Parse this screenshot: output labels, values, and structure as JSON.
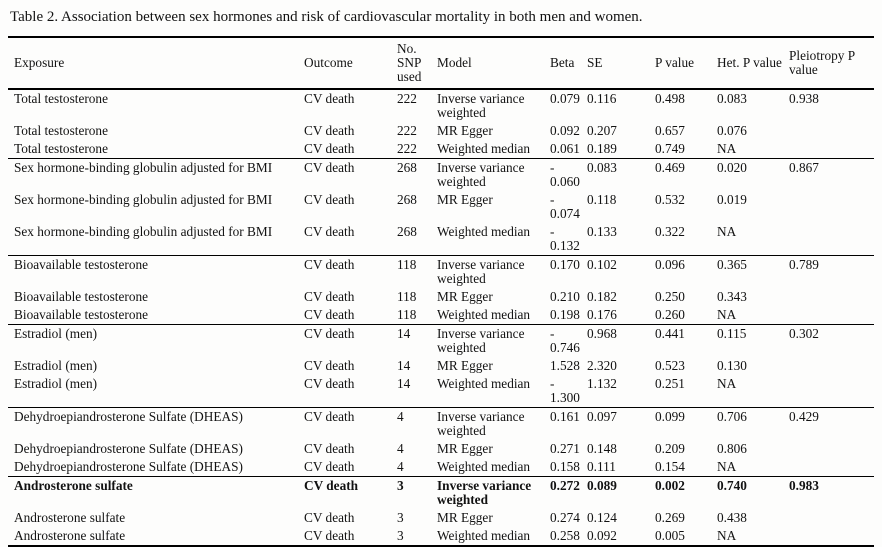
{
  "caption": "Table 2. Association between sex hormones and risk of cardiovascular mortality in both men and women.",
  "table": {
    "columns": [
      "Exposure",
      "Outcome",
      "No. SNP used",
      "Model",
      "Beta",
      "SE",
      "P value",
      "Het. P value",
      "Pleiotropy P value"
    ],
    "groups": [
      {
        "rows": [
          {
            "exposure": "Total testosterone",
            "outcome": "CV death",
            "snp": "222",
            "model": "Inverse variance weighted",
            "beta": "0.079",
            "se": "0.116",
            "p": "0.498",
            "het": "0.083",
            "pleio": "0.938",
            "bold": false
          },
          {
            "exposure": "Total testosterone",
            "outcome": "CV death",
            "snp": "222",
            "model": "MR Egger",
            "beta": "0.092",
            "se": "0.207",
            "p": "0.657",
            "het": "0.076",
            "pleio": "",
            "bold": false
          },
          {
            "exposure": "Total testosterone",
            "outcome": "CV death",
            "snp": "222",
            "model": "Weighted median",
            "beta": "0.061",
            "se": "0.189",
            "p": "0.749",
            "het": "NA",
            "pleio": "",
            "bold": false
          }
        ]
      },
      {
        "rows": [
          {
            "exposure": "Sex hormone-binding globulin adjusted for BMI",
            "outcome": "CV death",
            "snp": "268",
            "model": "Inverse variance weighted",
            "beta": "-\n0.060",
            "se": "0.083",
            "p": "0.469",
            "het": "0.020",
            "pleio": "0.867",
            "bold": false
          },
          {
            "exposure": "Sex hormone-binding globulin adjusted for BMI",
            "outcome": "CV death",
            "snp": "268",
            "model": "MR Egger",
            "beta": "-\n0.074",
            "se": "0.118",
            "p": "0.532",
            "het": "0.019",
            "pleio": "",
            "bold": false
          },
          {
            "exposure": "Sex hormone-binding globulin adjusted for BMI",
            "outcome": "CV death",
            "snp": "268",
            "model": "Weighted median",
            "beta": "-\n0.132",
            "se": "0.133",
            "p": "0.322",
            "het": "NA",
            "pleio": "",
            "bold": false
          }
        ]
      },
      {
        "rows": [
          {
            "exposure": "Bioavailable testosterone",
            "outcome": "CV death",
            "snp": "118",
            "model": "Inverse variance weighted",
            "beta": "0.170",
            "se": "0.102",
            "p": "0.096",
            "het": "0.365",
            "pleio": "0.789",
            "bold": false
          },
          {
            "exposure": "Bioavailable testosterone",
            "outcome": "CV death",
            "snp": "118",
            "model": "MR Egger",
            "beta": "0.210",
            "se": "0.182",
            "p": "0.250",
            "het": "0.343",
            "pleio": "",
            "bold": false
          },
          {
            "exposure": "Bioavailable testosterone",
            "outcome": "CV death",
            "snp": "118",
            "model": "Weighted median",
            "beta": "0.198",
            "se": "0.176",
            "p": "0.260",
            "het": "NA",
            "pleio": "",
            "bold": false
          }
        ]
      },
      {
        "rows": [
          {
            "exposure": "Estradiol (men)",
            "outcome": "CV death",
            "snp": "14",
            "model": "Inverse variance weighted",
            "beta": "-\n0.746",
            "se": "0.968",
            "p": "0.441",
            "het": "0.115",
            "pleio": "0.302",
            "bold": false
          },
          {
            "exposure": "Estradiol (men)",
            "outcome": "CV death",
            "snp": "14",
            "model": "MR Egger",
            "beta": "1.528",
            "se": "2.320",
            "p": "0.523",
            "het": "0.130",
            "pleio": "",
            "bold": false
          },
          {
            "exposure": "Estradiol (men)",
            "outcome": "CV death",
            "snp": "14",
            "model": "Weighted median",
            "beta": "-\n1.300",
            "se": "1.132",
            "p": "0.251",
            "het": "NA",
            "pleio": "",
            "bold": false
          }
        ]
      },
      {
        "rows": [
          {
            "exposure": "Dehydroepiandrosterone Sulfate (DHEAS)",
            "outcome": "CV death",
            "snp": "4",
            "model": "Inverse variance weighted",
            "beta": "0.161",
            "se": "0.097",
            "p": "0.099",
            "het": "0.706",
            "pleio": "0.429",
            "bold": false
          },
          {
            "exposure": "Dehydroepiandrosterone Sulfate (DHEAS)",
            "outcome": "CV death",
            "snp": "4",
            "model": "MR Egger",
            "beta": "0.271",
            "se": "0.148",
            "p": "0.209",
            "het": "0.806",
            "pleio": "",
            "bold": false
          },
          {
            "exposure": "Dehydroepiandrosterone Sulfate (DHEAS)",
            "outcome": "CV death",
            "snp": "4",
            "model": "Weighted median",
            "beta": "0.158",
            "se": "0.111",
            "p": "0.154",
            "het": "NA",
            "pleio": "",
            "bold": false
          }
        ]
      },
      {
        "rows": [
          {
            "exposure": "Androsterone sulfate",
            "outcome": "CV death",
            "snp": "3",
            "model": "Inverse variance weighted",
            "beta": "0.272",
            "se": "0.089",
            "p": "0.002",
            "het": "0.740",
            "pleio": "0.983",
            "bold": true
          },
          {
            "exposure": "Androsterone sulfate",
            "outcome": "CV death",
            "snp": "3",
            "model": "MR Egger",
            "beta": "0.274",
            "se": "0.124",
            "p": "0.269",
            "het": "0.438",
            "pleio": "",
            "bold": false
          },
          {
            "exposure": "Androsterone sulfate",
            "outcome": "CV death",
            "snp": "3",
            "model": "Weighted median",
            "beta": "0.258",
            "se": "0.092",
            "p": "0.005",
            "het": "NA",
            "pleio": "",
            "bold": false
          }
        ]
      }
    ]
  }
}
